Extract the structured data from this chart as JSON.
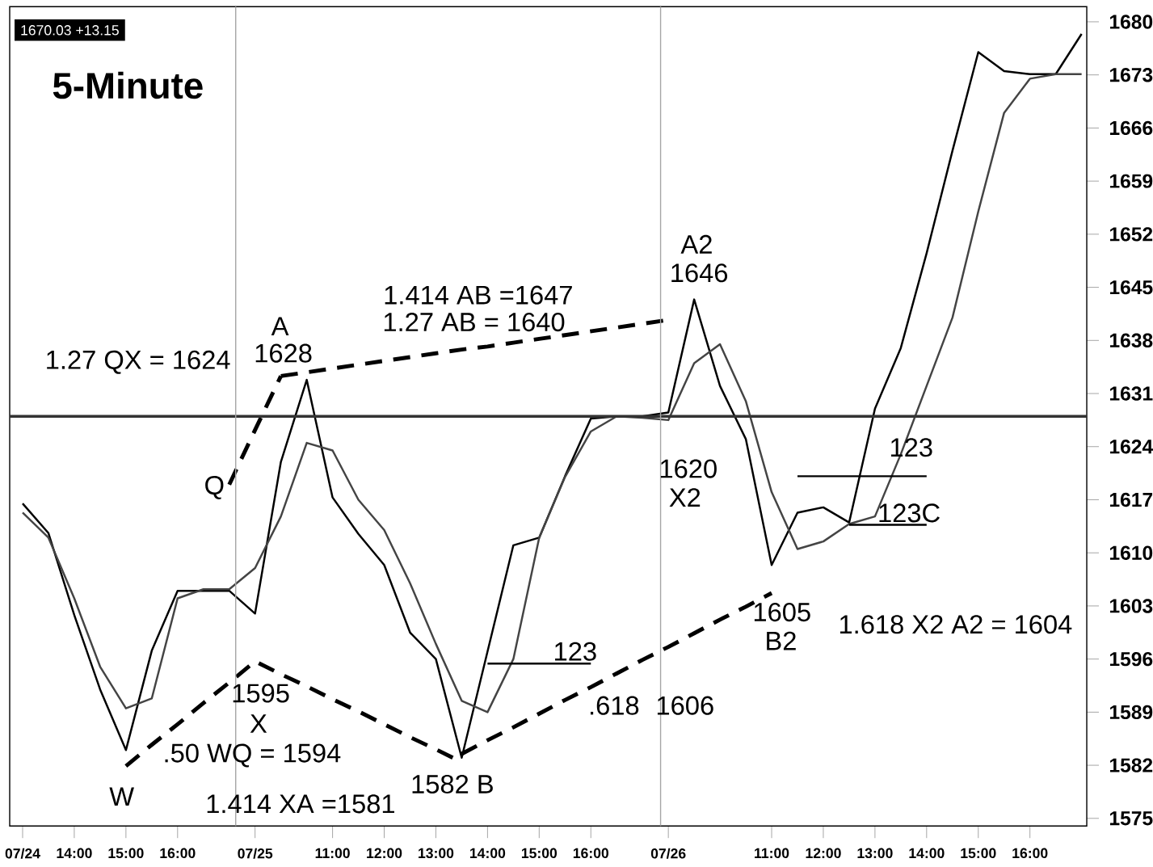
{
  "chart_data": {
    "type": "line",
    "title": "5-Minute",
    "ylim": [
      1574,
      1682
    ],
    "categories": [
      "07/24",
      null,
      "14:00",
      null,
      "15:00",
      null,
      "16:00",
      null,
      null,
      "07/25",
      null,
      null,
      "11:00",
      null,
      "12:00",
      null,
      "13:00",
      null,
      "14:00",
      null,
      "15:00",
      null,
      "16:00",
      null,
      null,
      "07/26",
      null,
      null,
      null,
      "11:00",
      null,
      "12:00",
      null,
      "13:00",
      null,
      "14:00",
      null,
      "15:00",
      null,
      "16:00",
      null,
      null
    ],
    "yticks": [
      1575,
      1582,
      1589,
      1596,
      1603,
      1610,
      1617,
      1624,
      1631,
      1638,
      1645,
      1652,
      1659,
      1666,
      1673,
      1680
    ],
    "series": [
      {
        "color": "#000000",
        "line_style": "solid",
        "values": [
          1616.5,
          1612.6,
          1601.8,
          1592.0,
          1584.0,
          1597.1,
          1605.0,
          1605.0,
          1605.0,
          1602.0,
          1622.0,
          1632.8,
          1617.3,
          1612.5,
          1608.4,
          1599.5,
          1596.0,
          1583.0,
          1597.0,
          1611.0,
          1612.0,
          1620.1,
          1627.7,
          1628.0,
          1628.0,
          1628.5,
          1643.4,
          1632.0,
          1625.0,
          1608.4,
          1615.3,
          1616.0,
          1614.0,
          1629.0,
          1637.0,
          1649.5,
          1663.0,
          1676.0,
          1673.5,
          1673.1,
          1673.1,
          1678.4
        ]
      },
      {
        "color": "#444444",
        "line_style": "solid",
        "values": [
          1615.3,
          1612.0,
          1604.0,
          1595.0,
          1589.5,
          1590.8,
          1604.0,
          1605.2,
          1605.2,
          1608.0,
          1614.8,
          1624.5,
          1623.5,
          1617.0,
          1613.0,
          1606.0,
          1598.0,
          1590.5,
          1589.0,
          1596.0,
          1612.0,
          1620.0,
          1626.0,
          1628.0,
          1627.8,
          1627.5,
          1635.0,
          1637.5,
          1630.0,
          1618.0,
          1610.5,
          1611.5,
          1613.8,
          1614.8,
          1623.0,
          1632.0,
          1641.0,
          1655.0,
          1668.0,
          1672.5,
          1673.1,
          1673.1
        ]
      },
      {
        "color": "#000000",
        "line_style": "dashed",
        "values": [
          null,
          null,
          null,
          null,
          1581.9,
          1584.7,
          1587.4,
          1590.2,
          1592.9,
          1595.7,
          1594.0,
          1592.4,
          1590.7,
          1589.1,
          1587.4,
          1585.7,
          1584.1,
          1582.4,
          null,
          null,
          null,
          null,
          null,
          null,
          null,
          null,
          null,
          null,
          null,
          null,
          null,
          null,
          null,
          null,
          null,
          null,
          null,
          null,
          null,
          null,
          null,
          null
        ]
      },
      {
        "color": "#000000",
        "line_style": "dashed",
        "values": [
          null,
          null,
          null,
          null,
          null,
          null,
          null,
          null,
          1619.0,
          1626.2,
          1633.3,
          null,
          null,
          null,
          null,
          null,
          null,
          null,
          null,
          null,
          null,
          null,
          null,
          null,
          null,
          null,
          null,
          null,
          null,
          null,
          null,
          null,
          null,
          null,
          null,
          null,
          null,
          null,
          null,
          null,
          null,
          null
        ]
      },
      {
        "color": "#000000",
        "line_style": "dashed",
        "values": [
          null,
          null,
          null,
          null,
          null,
          null,
          null,
          null,
          null,
          null,
          1633.3,
          1633.8,
          1634.3,
          1634.8,
          1635.3,
          1635.8,
          1636.3,
          1636.8,
          1637.2,
          1637.7,
          1638.2,
          1638.7,
          1639.2,
          1639.7,
          1640.2,
          1640.7,
          null,
          null,
          null,
          null,
          null,
          null,
          null,
          null,
          null,
          null,
          null,
          null,
          null,
          null,
          null,
          null
        ]
      },
      {
        "color": "#000000",
        "line_style": "dashed",
        "values": [
          null,
          null,
          null,
          null,
          null,
          null,
          null,
          null,
          null,
          null,
          null,
          null,
          null,
          null,
          null,
          null,
          null,
          1583.5,
          1585.3,
          1587.0,
          1588.8,
          1590.6,
          1592.3,
          1594.1,
          1595.9,
          1597.6,
          1599.4,
          1601.2,
          1602.9,
          1604.7,
          null,
          null,
          null,
          null,
          null,
          null,
          null,
          null,
          null,
          null,
          null,
          null
        ]
      },
      {
        "color": "#000000",
        "line_style": "solid",
        "values": [
          null,
          null,
          null,
          null,
          null,
          null,
          null,
          null,
          null,
          null,
          null,
          null,
          null,
          null,
          null,
          null,
          null,
          null,
          1595.4,
          1595.4,
          1595.4,
          1595.4,
          1595.4,
          null,
          null,
          null,
          null,
          null,
          null,
          null,
          null,
          null,
          null,
          null,
          null,
          null,
          null,
          null,
          null,
          null,
          null,
          null
        ]
      },
      {
        "color": "#000000",
        "line_style": "solid",
        "values": [
          null,
          null,
          null,
          null,
          null,
          null,
          null,
          null,
          null,
          null,
          null,
          null,
          null,
          null,
          null,
          null,
          null,
          null,
          null,
          null,
          null,
          null,
          null,
          null,
          null,
          null,
          null,
          null,
          null,
          null,
          1620.1,
          1620.1,
          1620.1,
          1620.1,
          1620.1,
          1620.1,
          null,
          null,
          null,
          null,
          null,
          null
        ]
      },
      {
        "color": "#000000",
        "line_style": "solid",
        "values": [
          null,
          null,
          null,
          null,
          null,
          null,
          null,
          null,
          null,
          null,
          null,
          null,
          null,
          null,
          null,
          null,
          null,
          null,
          null,
          null,
          null,
          null,
          null,
          null,
          null,
          null,
          null,
          null,
          null,
          null,
          null,
          null,
          1613.7,
          1613.7,
          1613.7,
          1613.7,
          null,
          null,
          null,
          null,
          null,
          null
        ]
      }
    ],
    "ref_lines": [
      {
        "axis": "y",
        "value": 1628,
        "color": "#333333"
      }
    ],
    "annotations": [
      "1670.03 +13.15",
      "1.27 QX = 1624",
      "A",
      "1628",
      "1.414 AB =1647",
      "1.27 AB = 1640",
      "A2",
      "1646",
      "Q",
      "1620",
      "X2",
      "123",
      "123C",
      "1605",
      "B2",
      "1.618  X2 A2 = 1604",
      "123",
      "1595",
      "X",
      ".618",
      "1606",
      ".50 WQ = 1594",
      "W",
      "1.414 XA =1581",
      "1582  B"
    ]
  }
}
